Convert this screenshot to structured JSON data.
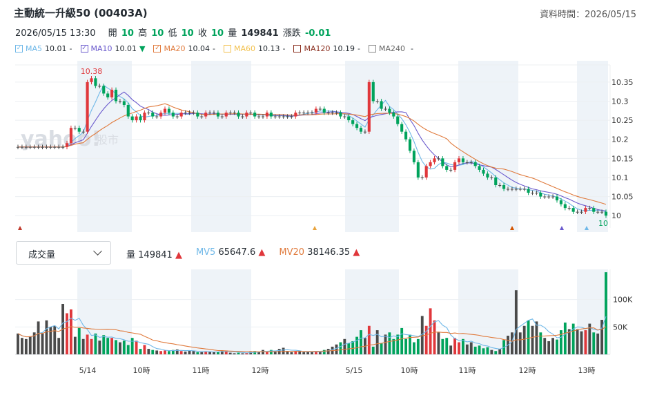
{
  "header": {
    "title": "主動統一升級50 (00403A)",
    "data_time_label": "資料時間：2026/05/15"
  },
  "quote": {
    "datetime": "2026/05/15 13:30",
    "open_label": "開",
    "open": "10",
    "high_label": "高",
    "high": "10",
    "low_label": "低",
    "low": "10",
    "close_label": "收",
    "close": "10",
    "volume_label": "量",
    "volume": "149841",
    "change_label": "漲跌",
    "change": "-0.01"
  },
  "ma_legend": [
    {
      "name": "MA5",
      "value": "10.01",
      "suffix": "-",
      "color": "#6fb8e8",
      "checked": true
    },
    {
      "name": "MA10",
      "value": "10.01",
      "suffix": "▼",
      "color": "#6a5acd",
      "checked": true
    },
    {
      "name": "MA20",
      "value": "10.04",
      "suffix": "-",
      "color": "#e07a3c",
      "checked": true
    },
    {
      "name": "MA60",
      "value": "10.13",
      "suffix": "-",
      "color": "#f2c14e",
      "checked": false
    },
    {
      "name": "MA120",
      "value": "10.19",
      "suffix": "-",
      "color": "#8b2f1f",
      "checked": false
    },
    {
      "name": "MA240",
      "value": "",
      "suffix": "-",
      "color": "#888888",
      "checked": false
    }
  ],
  "watermark": {
    "brand": "yahoo!",
    "sub": "股市"
  },
  "volume_select": {
    "label": "成交量"
  },
  "volume_legend": {
    "vol_label": "量",
    "vol_value": "149841",
    "mv5_label": "MV5",
    "mv5_value": "65647.6",
    "mv20_label": "MV20",
    "mv20_value": "38146.35"
  },
  "chart_data": [
    {
      "type": "candlestick",
      "title": "",
      "y_ticks": [
        "10.35",
        "10.3",
        "10.25",
        "10.2",
        "10.15",
        "10.1",
        "10.05",
        "10"
      ],
      "ylim": [
        9.975,
        10.395
      ],
      "annotations": {
        "high": "10.38",
        "last": "10"
      },
      "close_series": [
        10.18,
        10.18,
        10.18,
        10.18,
        10.18,
        10.18,
        10.18,
        10.18,
        10.18,
        10.18,
        10.18,
        10.18,
        10.19,
        10.23,
        10.23,
        10.22,
        10.22,
        10.35,
        10.36,
        10.34,
        10.34,
        10.32,
        10.31,
        10.33,
        10.3,
        10.3,
        10.29,
        10.26,
        10.25,
        10.26,
        10.25,
        10.27,
        10.27,
        10.26,
        10.26,
        10.27,
        10.28,
        10.27,
        10.26,
        10.26,
        10.27,
        10.27,
        10.27,
        10.27,
        10.26,
        10.26,
        10.27,
        10.27,
        10.27,
        10.26,
        10.26,
        10.27,
        10.27,
        10.27,
        10.26,
        10.26,
        10.27,
        10.27,
        10.26,
        10.26,
        10.26,
        10.27,
        10.26,
        10.26,
        10.26,
        10.26,
        10.26,
        10.26,
        10.27,
        10.27,
        10.27,
        10.27,
        10.27,
        10.28,
        10.28,
        10.27,
        10.27,
        10.27,
        10.27,
        10.26,
        10.26,
        10.25,
        10.24,
        10.23,
        10.22,
        10.22,
        10.35,
        10.3,
        10.3,
        10.28,
        10.28,
        10.27,
        10.26,
        10.24,
        10.22,
        10.2,
        10.17,
        10.14,
        10.1,
        10.1,
        10.13,
        10.14,
        10.15,
        10.15,
        10.13,
        10.12,
        10.12,
        10.14,
        10.15,
        10.14,
        10.14,
        10.14,
        10.13,
        10.12,
        10.11,
        10.1,
        10.1,
        10.08,
        10.08,
        10.07,
        10.07,
        10.07,
        10.07,
        10.07,
        10.07,
        10.06,
        10.06,
        10.06,
        10.05,
        10.05,
        10.05,
        10.05,
        10.04,
        10.03,
        10.02,
        10.02,
        10.01,
        10.01,
        10.01,
        10.02,
        10.02,
        10.01,
        10.01,
        10.01,
        10
      ]
    },
    {
      "type": "bar",
      "title": "Volume",
      "y_ticks": [
        "100K",
        "50K"
      ],
      "ylim": [
        0,
        150000
      ],
      "x_ticks": [
        "5/14",
        "10時",
        "11時",
        "12時",
        "5/15",
        "10時",
        "11時",
        "12時",
        "13時"
      ],
      "values": [
        38000,
        30000,
        28000,
        33000,
        40000,
        60000,
        38000,
        62000,
        50000,
        52000,
        30000,
        92000,
        75000,
        82000,
        32000,
        48000,
        28000,
        36000,
        28000,
        38000,
        25000,
        35000,
        30000,
        30000,
        26000,
        22000,
        25000,
        17000,
        30000,
        25000,
        10000,
        17000,
        10000,
        8000,
        7000,
        6000,
        7000,
        6000,
        8000,
        9000,
        6000,
        5000,
        7000,
        6000,
        4000,
        4000,
        5000,
        5000,
        4000,
        5000,
        6000,
        7000,
        3000,
        2000,
        3000,
        2000,
        3000,
        5000,
        6000,
        5000,
        8000,
        4000,
        8000,
        6000,
        10000,
        12000,
        6000,
        4000,
        5000,
        6000,
        4000,
        4000,
        4000,
        6000,
        5000,
        8000,
        10000,
        14000,
        18000,
        22000,
        28000,
        20000,
        24000,
        32000,
        44000,
        30000,
        52000,
        14000,
        44000,
        20000,
        36000,
        40000,
        28000,
        36000,
        48000,
        28000,
        36000,
        22000,
        28000,
        70000,
        52000,
        84000,
        62000,
        40000,
        28000,
        30000,
        16000,
        30000,
        22000,
        28000,
        18000,
        22000,
        14000,
        16000,
        11000,
        13000,
        8000,
        6000,
        10000,
        26000,
        34000,
        40000,
        117000,
        40000,
        52000,
        62000,
        52000,
        60000,
        40000,
        30000,
        24000,
        30000,
        27000,
        44000,
        58000,
        46000,
        56000,
        46000,
        42000,
        44000,
        56000,
        40000,
        38000,
        63000,
        149841
      ],
      "up_color": "#e0373b",
      "down_color": "#00a35c",
      "flat_color": "#4a4a4a"
    }
  ]
}
